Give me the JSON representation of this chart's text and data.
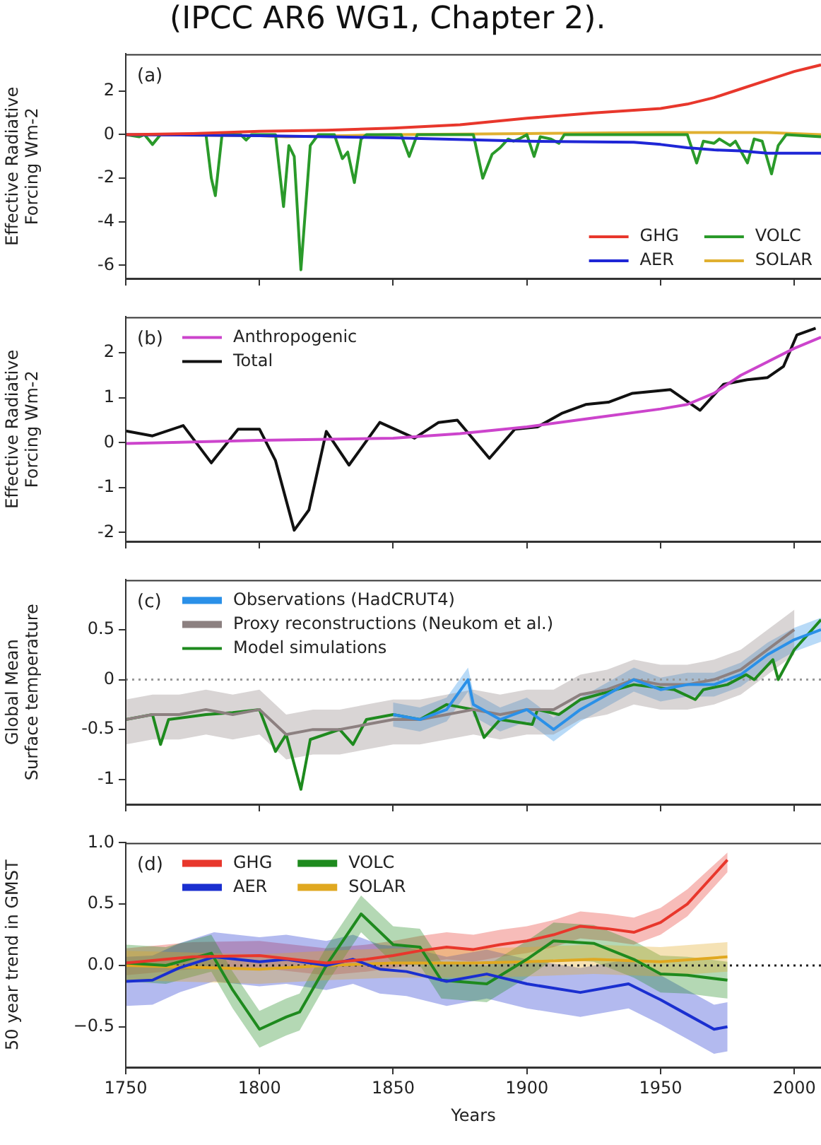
{
  "chart_data": [
    {
      "type": "line",
      "title": "(IPCC AR6 WG1, Chapter 2).",
      "ylabel": "Effective Radiative\nForcing Wm-2",
      "annotations": [
        "(a)"
      ],
      "xlim": [
        1750,
        2010
      ],
      "xticks": [
        1750,
        1800,
        1850,
        1900,
        1950,
        2000
      ],
      "ylim": [
        -6.6,
        3.7
      ],
      "yticks": [
        -6,
        -4,
        -2,
        0,
        2
      ],
      "tick_labels": "y",
      "legend": "bottom right",
      "series": [
        {
          "name": "GHG",
          "color": "#e8372c",
          "x": [
            1750,
            1775,
            1800,
            1825,
            1850,
            1875,
            1900,
            1925,
            1950,
            1960,
            1970,
            1980,
            1990,
            2000,
            2010
          ],
          "values": [
            0,
            0.05,
            0.15,
            0.2,
            0.3,
            0.45,
            0.75,
            1.0,
            1.2,
            1.4,
            1.7,
            2.1,
            2.5,
            2.9,
            3.2
          ]
        },
        {
          "name": "AER",
          "color": "#1f26d6",
          "x": [
            1750,
            1800,
            1850,
            1900,
            1940,
            1950,
            1960,
            1970,
            1980,
            1990,
            2010
          ],
          "values": [
            0,
            -0.05,
            -0.15,
            -0.3,
            -0.35,
            -0.45,
            -0.6,
            -0.7,
            -0.75,
            -0.85,
            -0.85
          ]
        },
        {
          "name": "VOLC",
          "color": "#2a9a2a",
          "x": [
            1750,
            1755,
            1757,
            1760,
            1763,
            1780,
            1782,
            1783.5,
            1786,
            1793,
            1795,
            1797,
            1806,
            1809,
            1811,
            1813,
            1815.5,
            1819,
            1822,
            1828,
            1831,
            1833,
            1835.5,
            1838,
            1840,
            1853,
            1856,
            1859,
            1880,
            1883.5,
            1887,
            1890,
            1893,
            1895,
            1897,
            1900,
            1902.7,
            1905,
            1909,
            1912,
            1914,
            1960,
            1963.5,
            1966,
            1970,
            1972,
            1976,
            1978,
            1982.5,
            1985,
            1988,
            1991.5,
            1994,
            1997,
            2010
          ],
          "values": [
            0,
            -0.1,
            0,
            -0.45,
            0,
            0,
            -2.0,
            -2.8,
            0,
            0,
            -0.25,
            0,
            0,
            -3.3,
            -0.5,
            -1.0,
            -6.2,
            -0.5,
            0,
            0,
            -1.1,
            -0.8,
            -2.2,
            -0.2,
            0,
            0,
            -1.0,
            0,
            0,
            -2.0,
            -0.9,
            -0.6,
            -0.2,
            -0.3,
            -0.2,
            0,
            -1.0,
            -0.1,
            -0.2,
            -0.4,
            0,
            0,
            -1.3,
            -0.3,
            -0.4,
            -0.2,
            -0.5,
            -0.3,
            -1.3,
            -0.2,
            -0.3,
            -1.8,
            -0.5,
            0,
            -0.1
          ]
        },
        {
          "name": "SOLAR",
          "color": "#e0b030",
          "x": [
            1750,
            1800,
            1810,
            1850,
            1900,
            1950,
            1960,
            1990,
            2010
          ],
          "values": [
            0,
            -0.05,
            -0.1,
            0,
            0.05,
            0.1,
            0.1,
            0.1,
            0
          ]
        }
      ]
    },
    {
      "type": "line",
      "ylabel": "Effective Radiative\nForcing Wm-2",
      "annotations": [
        "(b)"
      ],
      "xlim": [
        1750,
        2010
      ],
      "xticks": [
        1750,
        1800,
        1850,
        1900,
        1950,
        2000
      ],
      "ylim": [
        -2.2,
        2.8
      ],
      "yticks": [
        -2,
        -1,
        0,
        1,
        2
      ],
      "tick_labels": "y",
      "legend": "top left",
      "series": [
        {
          "name": "Anthropogenic",
          "color": "#cc44cc",
          "x": [
            1750,
            1800,
            1850,
            1875,
            1900,
            1925,
            1950,
            1960,
            1970,
            1980,
            1990,
            2000,
            2010
          ],
          "values": [
            -0.02,
            0.05,
            0.1,
            0.2,
            0.35,
            0.55,
            0.75,
            0.85,
            1.1,
            1.5,
            1.8,
            2.1,
            2.35
          ]
        },
        {
          "name": "Total",
          "color": "#111111",
          "x": [
            1750,
            1760,
            1771.5,
            1782,
            1792,
            1800,
            1806,
            1813,
            1818.5,
            1825,
            1833.5,
            1845,
            1858,
            1867,
            1874,
            1886,
            1895.5,
            1904,
            1913,
            1922,
            1930.5,
            1939.5,
            1953.7,
            1964.8,
            1973.6,
            1982.4,
            1990,
            1996,
            2001,
            2008
          ],
          "values": [
            0.26,
            0.15,
            0.38,
            -0.45,
            0.3,
            0.3,
            -0.4,
            -1.95,
            -1.5,
            0.25,
            -0.5,
            0.45,
            0.1,
            0.45,
            0.5,
            -0.35,
            0.3,
            0.35,
            0.65,
            0.85,
            0.9,
            1.1,
            1.18,
            0.72,
            1.3,
            1.4,
            1.45,
            1.7,
            2.4,
            2.55
          ]
        }
      ]
    },
    {
      "type": "line",
      "ylabel": "Global Mean\nSurface temperature",
      "annotations": [
        "(c)"
      ],
      "xlim": [
        1750,
        2010
      ],
      "xticks": [
        1750,
        1800,
        1850,
        1900,
        1950,
        2000
      ],
      "ylim": [
        -1.25,
        1.0
      ],
      "yticks": [
        -1,
        -0.5,
        0,
        0.5
      ],
      "tick_labels": "y",
      "legend": "top left",
      "ref_lines": [
        {
          "axis": "y",
          "value": 0,
          "color": "#999999",
          "line_style": "dotted"
        }
      ],
      "series": [
        {
          "name": "Observations (HadCRUT4)",
          "color": "#2a90e8",
          "x": [
            1850,
            1860,
            1870,
            1878,
            1880,
            1890,
            1900,
            1910,
            1920,
            1930,
            1940,
            1950,
            1960,
            1970,
            1980,
            1990,
            2000,
            2010
          ],
          "values": [
            -0.35,
            -0.4,
            -0.3,
            0,
            -0.25,
            -0.4,
            -0.3,
            -0.5,
            -0.3,
            -0.15,
            0,
            -0.1,
            -0.05,
            -0.05,
            0.05,
            0.25,
            0.4,
            0.5
          ],
          "lower": [
            -0.47,
            -0.52,
            -0.42,
            -0.12,
            -0.37,
            -0.52,
            -0.42,
            -0.62,
            -0.42,
            -0.27,
            -0.12,
            -0.22,
            -0.17,
            -0.17,
            -0.07,
            0.13,
            0.28,
            0.38
          ],
          "upper": [
            -0.23,
            -0.28,
            -0.18,
            0.12,
            -0.13,
            -0.28,
            -0.18,
            -0.38,
            -0.18,
            -0.03,
            0.12,
            0.02,
            0.07,
            0.07,
            0.17,
            0.37,
            0.52,
            0.62
          ]
        },
        {
          "name": "Proxy reconstructions (Neukom et al.)",
          "color": "#8c8080",
          "x": [
            1750,
            1760,
            1770,
            1780,
            1790,
            1800,
            1810,
            1820,
            1830,
            1840,
            1850,
            1860,
            1870,
            1880,
            1890,
            1900,
            1910,
            1920,
            1930,
            1940,
            1950,
            1960,
            1970,
            1980,
            1990,
            2000
          ],
          "values": [
            -0.4,
            -0.35,
            -0.35,
            -0.3,
            -0.35,
            -0.3,
            -0.55,
            -0.5,
            -0.5,
            -0.45,
            -0.4,
            -0.4,
            -0.35,
            -0.3,
            -0.35,
            -0.3,
            -0.3,
            -0.15,
            -0.1,
            0,
            -0.05,
            -0.05,
            0,
            0.1,
            0.3,
            0.5
          ],
          "lower": [
            -0.65,
            -0.6,
            -0.6,
            -0.55,
            -0.6,
            -0.55,
            -0.8,
            -0.75,
            -0.75,
            -0.7,
            -0.65,
            -0.65,
            -0.6,
            -0.55,
            -0.6,
            -0.55,
            -0.55,
            -0.4,
            -0.35,
            -0.25,
            -0.3,
            -0.3,
            -0.25,
            -0.15,
            0.05,
            0.25
          ],
          "upper": [
            -0.2,
            -0.15,
            -0.15,
            -0.1,
            -0.15,
            -0.1,
            -0.35,
            -0.3,
            -0.3,
            -0.25,
            -0.2,
            -0.2,
            -0.15,
            -0.1,
            -0.15,
            -0.1,
            -0.1,
            0.05,
            0.1,
            0.2,
            0.15,
            0.15,
            0.2,
            0.3,
            0.5,
            0.7
          ]
        },
        {
          "name": "Model simulations",
          "color": "#1e8a1e",
          "x": [
            1750,
            1760,
            1763,
            1766,
            1780,
            1790,
            1800,
            1806,
            1810,
            1815.5,
            1819,
            1830,
            1835,
            1840,
            1850,
            1860,
            1870,
            1880,
            1884,
            1890,
            1902,
            1904,
            1912,
            1920,
            1940,
            1955,
            1963,
            1966,
            1975,
            1982,
            1985,
            1992,
            1994,
            2000,
            2010
          ],
          "values": [
            -0.4,
            -0.35,
            -0.65,
            -0.4,
            -0.35,
            -0.33,
            -0.3,
            -0.72,
            -0.55,
            -1.1,
            -0.6,
            -0.5,
            -0.65,
            -0.4,
            -0.35,
            -0.4,
            -0.25,
            -0.3,
            -0.58,
            -0.4,
            -0.45,
            -0.3,
            -0.35,
            -0.2,
            -0.05,
            -0.1,
            -0.2,
            -0.1,
            -0.05,
            0.05,
            0,
            0.2,
            0,
            0.3,
            0.6
          ]
        }
      ]
    },
    {
      "type": "line",
      "xlabel": "Years",
      "ylabel": "50 year trend in GMST",
      "annotations": [
        "(d)"
      ],
      "xlim": [
        1750,
        2010
      ],
      "xticks": [
        1750,
        1800,
        1850,
        1900,
        1950,
        2000
      ],
      "ylim": [
        -0.83,
        1.0
      ],
      "yticks": [
        {
          "value": -0.5,
          "label": "−0.5"
        },
        {
          "value": 0,
          "label": "0.0"
        },
        {
          "value": 0.5,
          "label": "0.5"
        },
        {
          "value": 1,
          "label": "1.0"
        }
      ],
      "legend": "top left",
      "ref_lines": [
        {
          "axis": "y",
          "value": 0,
          "color": "#222222",
          "line_style": "dotted"
        }
      ],
      "series": [
        {
          "name": "GHG",
          "color": "#e8372c",
          "x": [
            1750,
            1775,
            1800,
            1825,
            1840,
            1850,
            1860,
            1870,
            1880,
            1890,
            1900,
            1910,
            1920,
            1930,
            1940,
            1950,
            1960,
            1975
          ],
          "values": [
            0.02,
            0.07,
            0.08,
            0.02,
            0.05,
            0.08,
            0.12,
            0.15,
            0.13,
            0.17,
            0.2,
            0.25,
            0.32,
            0.3,
            0.27,
            0.35,
            0.5,
            0.86
          ],
          "lower": [
            -0.08,
            -0.03,
            -0.02,
            -0.08,
            -0.05,
            -0.02,
            0.02,
            0.05,
            0.03,
            0.07,
            0.1,
            0.15,
            0.22,
            0.2,
            0.17,
            0.25,
            0.4,
            0.76
          ],
          "upper": [
            0.14,
            0.19,
            0.2,
            0.14,
            0.17,
            0.2,
            0.24,
            0.27,
            0.25,
            0.29,
            0.32,
            0.37,
            0.44,
            0.42,
            0.39,
            0.47,
            0.62,
            0.92
          ]
        },
        {
          "name": "AER",
          "color": "#1a2fd0",
          "x": [
            1750,
            1760,
            1770,
            1783,
            1800,
            1810,
            1825,
            1835,
            1845,
            1855,
            1870,
            1885,
            1900,
            1920,
            1938,
            1950,
            1960,
            1970,
            1975
          ],
          "values": [
            -0.13,
            -0.12,
            -0.02,
            0.07,
            0.03,
            0.05,
            0,
            0.05,
            -0.03,
            -0.05,
            -0.13,
            -0.07,
            -0.15,
            -0.22,
            -0.15,
            -0.28,
            -0.4,
            -0.52,
            -0.5
          ],
          "lower": [
            -0.33,
            -0.32,
            -0.22,
            -0.13,
            -0.17,
            -0.15,
            -0.2,
            -0.15,
            -0.23,
            -0.25,
            -0.33,
            -0.27,
            -0.35,
            -0.42,
            -0.35,
            -0.48,
            -0.6,
            -0.72,
            -0.7
          ],
          "upper": [
            0.07,
            0.08,
            0.18,
            0.27,
            0.23,
            0.25,
            0.2,
            0.25,
            0.17,
            0.15,
            0.07,
            0.13,
            0.05,
            -0.02,
            0.05,
            -0.08,
            -0.2,
            -0.32,
            -0.3
          ]
        },
        {
          "name": "VOLC",
          "color": "#1e8a1e",
          "x": [
            1750,
            1765,
            1782,
            1790,
            1800,
            1810,
            1815,
            1825,
            1838,
            1850,
            1860,
            1868,
            1885,
            1900,
            1910,
            1925,
            1940,
            1950,
            1960,
            1975
          ],
          "values": [
            0.02,
            0,
            0.1,
            -0.2,
            -0.52,
            -0.42,
            -0.38,
            0,
            0.42,
            0.17,
            0.15,
            -0.12,
            -0.15,
            0.05,
            0.2,
            0.18,
            0.05,
            -0.07,
            -0.08,
            -0.12
          ],
          "lower": [
            -0.13,
            -0.15,
            -0.05,
            -0.35,
            -0.67,
            -0.57,
            -0.53,
            -0.15,
            0.27,
            0.02,
            0,
            -0.27,
            -0.3,
            -0.1,
            0.05,
            0.03,
            -0.1,
            -0.22,
            -0.23,
            -0.27
          ],
          "upper": [
            0.17,
            0.15,
            0.25,
            -0.05,
            -0.37,
            -0.27,
            -0.23,
            0.15,
            0.57,
            0.32,
            0.3,
            0.03,
            0,
            0.2,
            0.35,
            0.33,
            0.2,
            0.08,
            0.07,
            0.03
          ]
        },
        {
          "name": "SOLAR",
          "color": "#e0a820",
          "x": [
            1750,
            1800,
            1825,
            1850,
            1880,
            1900,
            1925,
            1950,
            1975
          ],
          "values": [
            0,
            -0.03,
            0,
            0.02,
            0.02,
            0.03,
            0.05,
            0.03,
            0.07
          ],
          "lower": [
            -0.12,
            -0.15,
            -0.12,
            -0.1,
            -0.1,
            -0.09,
            -0.07,
            -0.09,
            -0.05
          ],
          "upper": [
            0.12,
            0.09,
            0.12,
            0.14,
            0.14,
            0.15,
            0.17,
            0.15,
            0.19
          ]
        }
      ]
    }
  ]
}
